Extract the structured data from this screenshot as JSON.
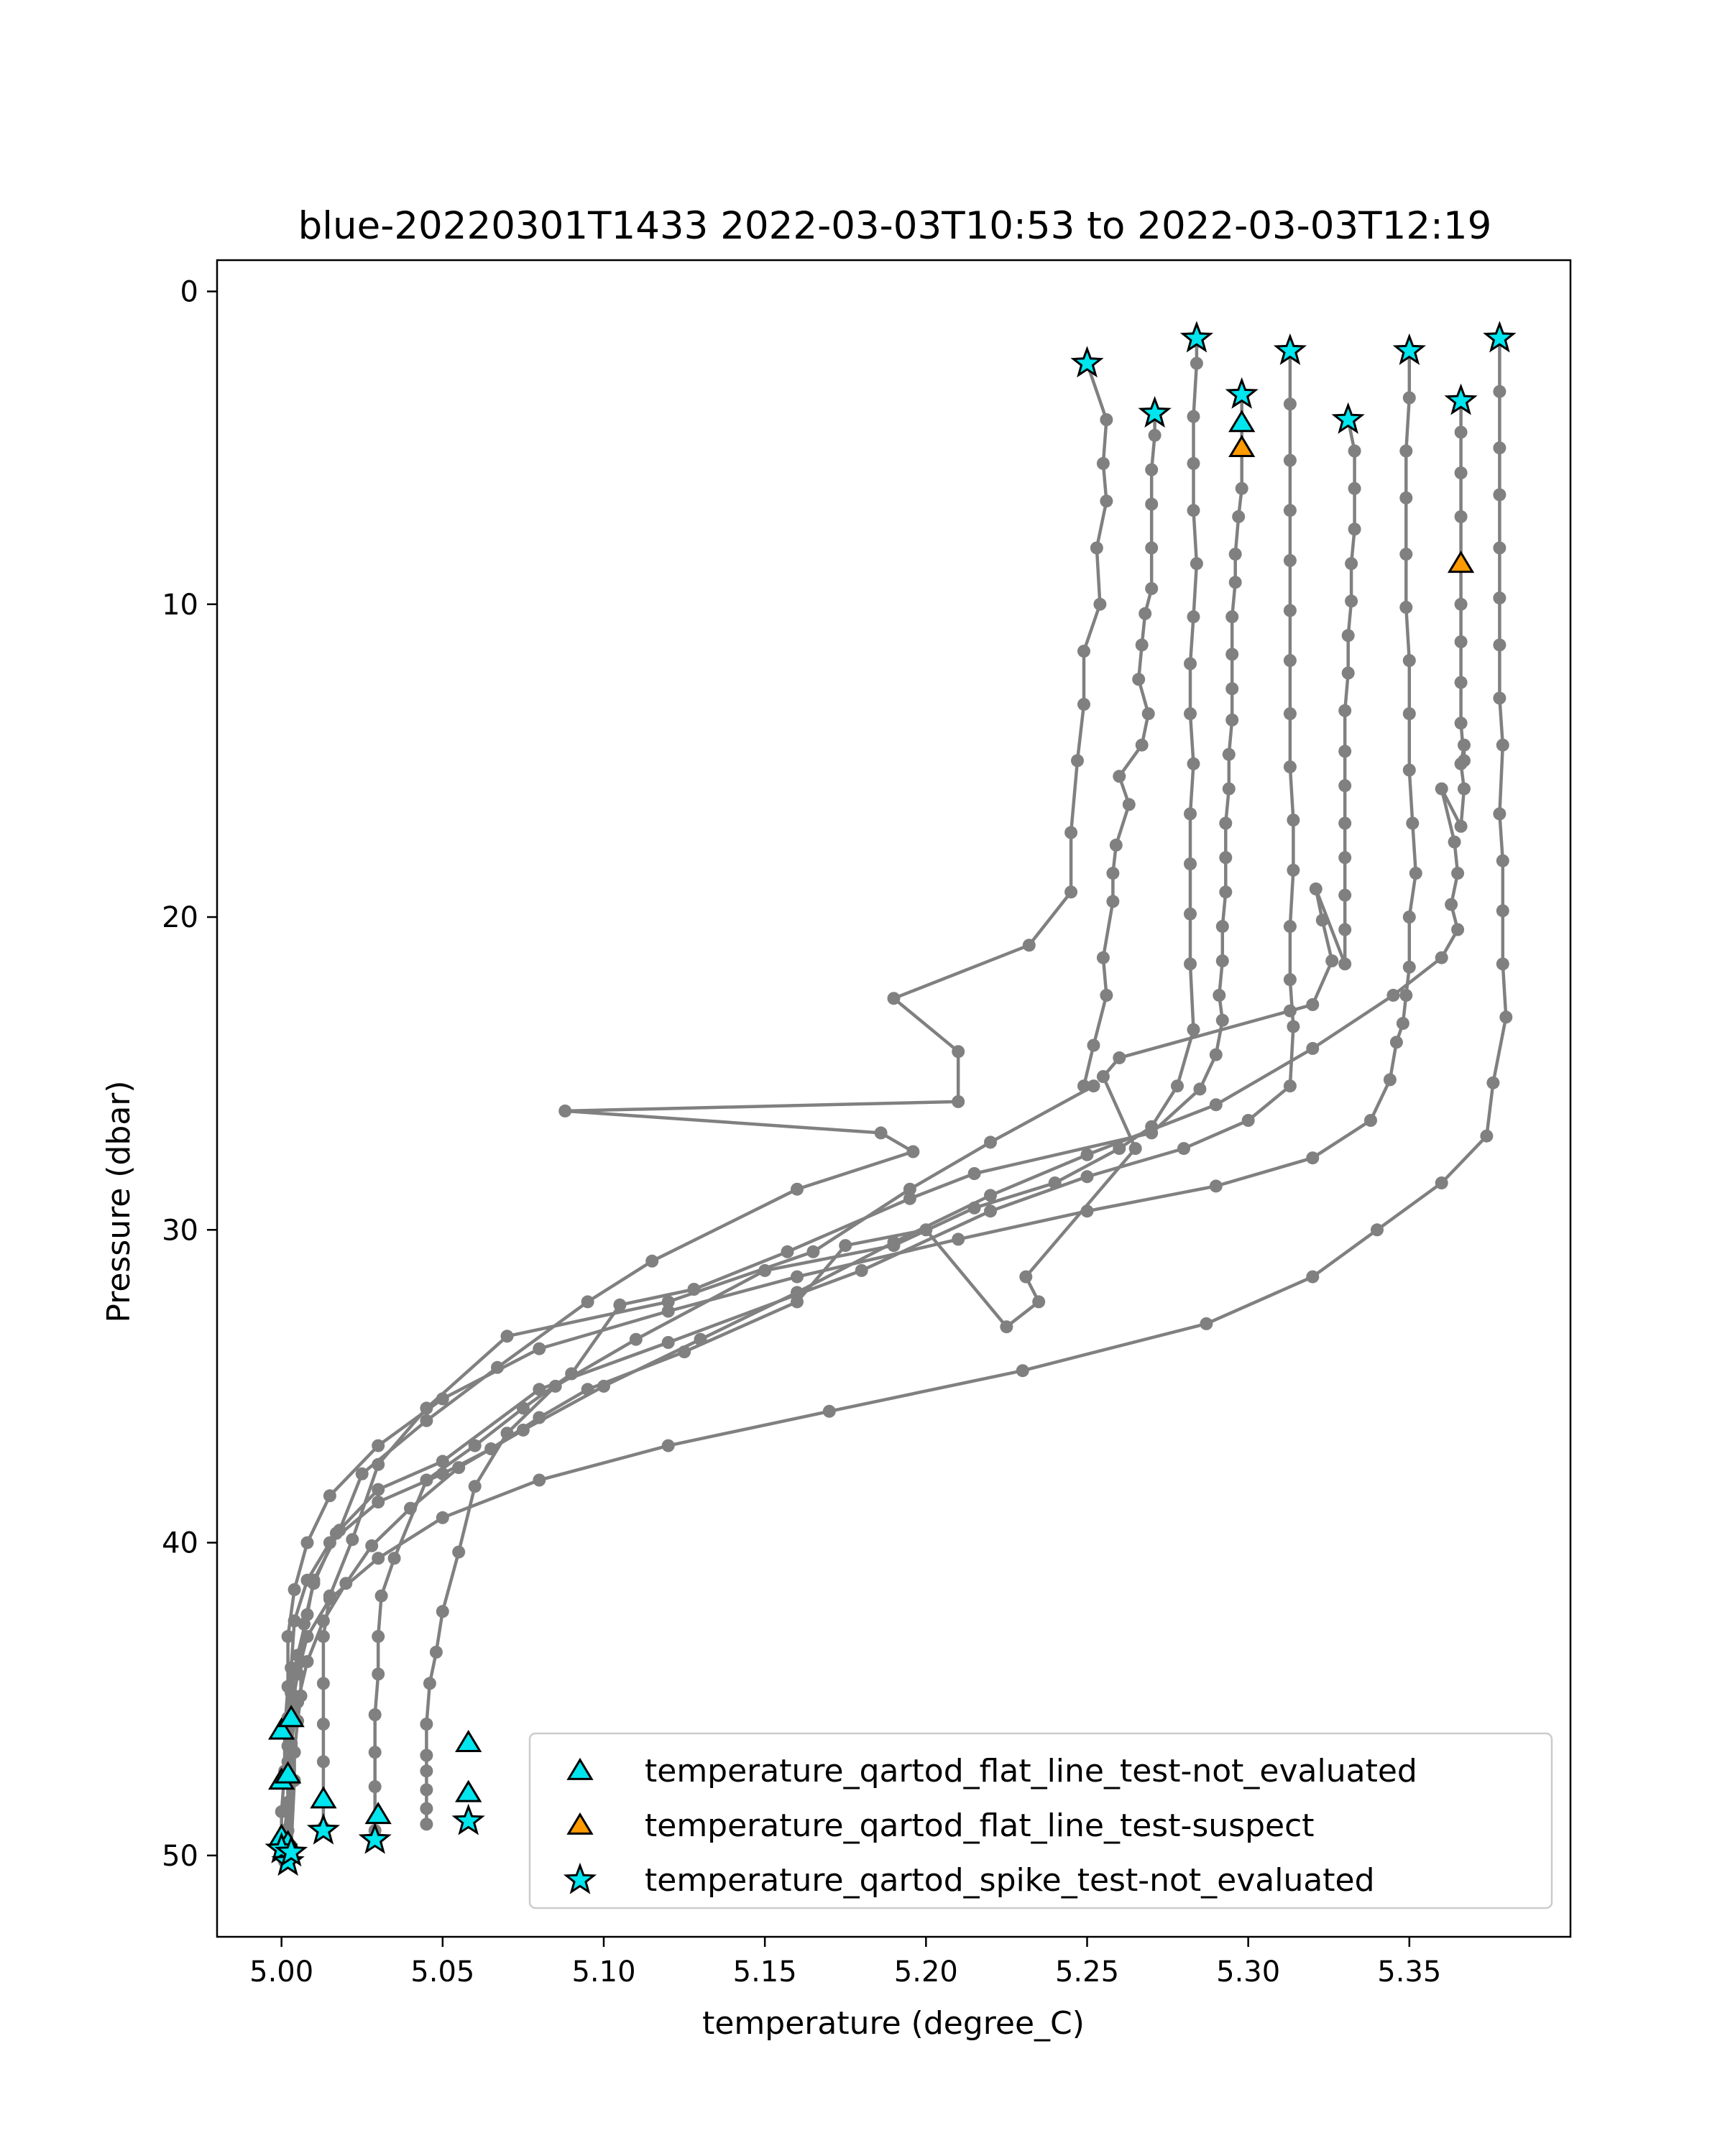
{
  "chart_data": {
    "type": "scatter",
    "title": "blue-20220301T1433 2022-03-03T10:53 to 2022-03-03T12:19",
    "xlabel": "temperature (degree_C)",
    "ylabel": "Pressure (dbar)",
    "xlim": [
      4.98,
      5.4
    ],
    "ylim": [
      52.6,
      -1
    ],
    "y_inverted": true,
    "xticks": [
      5.0,
      5.05,
      5.1,
      5.15,
      5.2,
      5.25,
      5.3,
      5.35
    ],
    "xtick_labels": [
      "5.00",
      "5.05",
      "5.10",
      "5.15",
      "5.20",
      "5.25",
      "5.30",
      "5.35"
    ],
    "yticks": [
      0,
      10,
      20,
      30,
      40,
      50
    ],
    "ytick_labels": [
      "0",
      "10",
      "20",
      "30",
      "40",
      "50"
    ],
    "grid": false,
    "legend_position": "lower-right",
    "colors": {
      "profile": "#808080",
      "not_evaluated": "#00e5ee",
      "suspect": "#ff9a00",
      "marker_edge": "#000000"
    },
    "profiles": [
      {
        "x": [
          5.25,
          5.256,
          5.255,
          5.256,
          5.253,
          5.254,
          5.249,
          5.249,
          5.247,
          5.245,
          5.245,
          5.232,
          5.19,
          5.21,
          5.21,
          5.088,
          5.186,
          5.196,
          5.16,
          5.115,
          5.095,
          5.067,
          5.045,
          5.025,
          5.018,
          5.01,
          5.008,
          5.005,
          5.003,
          5.003,
          5.002,
          5.002,
          5.002,
          5.001,
          5.001,
          5.0
        ],
        "y": [
          2.3,
          4.1,
          5.5,
          6.7,
          8.2,
          10.0,
          11.5,
          13.2,
          15.0,
          17.3,
          19.2,
          20.9,
          22.6,
          24.3,
          25.9,
          26.2,
          26.9,
          27.5,
          28.7,
          31.0,
          32.3,
          34.4,
          36.1,
          37.8,
          39.6,
          41.2,
          42.3,
          43.6,
          44.8,
          45.7,
          46.5,
          47.4,
          48.3,
          49.2,
          49.7,
          49.8
        ]
      },
      {
        "x": [
          5.271,
          5.271,
          5.27,
          5.27,
          5.27,
          5.27,
          5.268,
          5.267,
          5.266,
          5.269,
          5.267,
          5.26,
          5.263,
          5.259,
          5.258,
          5.258,
          5.255,
          5.256,
          5.252,
          5.249,
          5.252,
          5.22,
          5.195,
          5.165,
          5.12,
          5.07,
          5.045,
          5.03,
          5.022,
          5.015,
          5.013,
          5.013,
          5.013,
          5.013,
          5.013,
          5.013
        ],
        "y": [
          3.9,
          4.6,
          5.7,
          6.8,
          8.2,
          9.5,
          10.3,
          11.3,
          12.4,
          13.5,
          14.5,
          15.5,
          16.4,
          17.7,
          18.6,
          19.5,
          21.3,
          22.5,
          24.1,
          25.4,
          25.4,
          27.2,
          28.7,
          30.7,
          32.3,
          33.4,
          35.7,
          37.5,
          39.9,
          41.7,
          43.0,
          44.5,
          45.8,
          47.0,
          48.2,
          49.1
        ]
      },
      {
        "x": [
          5.284,
          5.284,
          5.283,
          5.283,
          5.283,
          5.284,
          5.283,
          5.282,
          5.282,
          5.283,
          5.282,
          5.282,
          5.282,
          5.282,
          5.283,
          5.278,
          5.27,
          5.26,
          5.24,
          5.215,
          5.19,
          5.15,
          5.11,
          5.085,
          5.07,
          5.06,
          5.055,
          5.05,
          5.048,
          5.046,
          5.045,
          5.045,
          5.045,
          5.045,
          5.045,
          5.045
        ],
        "y": [
          1.6,
          2.3,
          4.0,
          5.5,
          7.0,
          8.7,
          10.4,
          11.9,
          13.5,
          15.1,
          16.7,
          18.3,
          19.9,
          21.5,
          23.6,
          25.4,
          26.7,
          27.4,
          28.5,
          29.3,
          30.5,
          31.3,
          33.5,
          35.0,
          36.5,
          38.2,
          40.3,
          42.2,
          43.5,
          44.5,
          45.8,
          46.8,
          47.3,
          47.9,
          48.5,
          49.0
        ]
      },
      {
        "x": [
          5.298,
          5.298,
          5.298,
          5.298,
          5.297,
          5.296,
          5.296,
          5.295,
          5.295,
          5.295,
          5.295,
          5.294,
          5.294,
          5.293,
          5.293,
          5.293,
          5.292,
          5.292,
          5.291,
          5.292,
          5.29,
          5.285,
          5.27,
          5.215,
          5.195,
          5.157,
          5.128,
          5.105,
          5.09,
          5.075,
          5.06,
          5.045,
          5.035,
          5.031,
          5.03,
          5.03,
          5.029,
          5.029,
          5.029,
          5.029
        ],
        "y": [
          3.3,
          4.2,
          5.0,
          6.3,
          7.2,
          8.4,
          9.3,
          10.4,
          11.6,
          12.7,
          13.7,
          14.8,
          15.9,
          17.0,
          18.1,
          19.2,
          20.3,
          21.4,
          22.5,
          23.3,
          24.4,
          25.5,
          26.9,
          28.2,
          29.0,
          30.7,
          31.9,
          32.4,
          34.6,
          35.7,
          36.9,
          38.0,
          40.5,
          41.7,
          43.0,
          44.2,
          45.5,
          46.7,
          47.8,
          49.2
        ]
      },
      {
        "x": [
          5.313,
          5.313,
          5.313,
          5.313,
          5.313,
          5.313,
          5.313,
          5.313,
          5.313,
          5.314,
          5.314,
          5.313,
          5.313,
          5.314,
          5.313,
          5.3,
          5.28,
          5.25,
          5.22,
          5.18,
          5.12,
          5.08,
          5.05,
          5.03,
          5.017,
          5.01,
          5.007,
          5.006,
          5.006,
          5.005,
          5.004,
          5.004,
          5.003
        ],
        "y": [
          1.9,
          3.6,
          5.4,
          7.0,
          8.6,
          10.2,
          11.8,
          13.5,
          15.2,
          16.9,
          18.5,
          20.3,
          22.0,
          23.5,
          25.4,
          26.5,
          27.4,
          28.3,
          29.4,
          31.3,
          33.6,
          35.1,
          37.4,
          38.3,
          39.7,
          41.3,
          42.6,
          43.8,
          44.9,
          45.7,
          46.7,
          47.6,
          49.7
        ]
      },
      {
        "x": [
          5.331,
          5.333,
          5.333,
          5.333,
          5.332,
          5.332,
          5.331,
          5.331,
          5.33,
          5.33,
          5.33,
          5.33,
          5.33,
          5.33,
          5.33,
          5.33,
          5.321,
          5.323,
          5.326,
          5.32,
          5.313,
          5.26,
          5.255,
          5.265,
          5.231,
          5.235,
          5.225,
          5.2,
          5.175,
          5.16,
          5.125,
          5.095,
          5.08,
          5.065,
          5.05,
          5.03,
          5.015,
          5.008,
          5.004,
          5.003,
          5.002,
          5.002,
          5.002,
          5.002
        ],
        "y": [
          4.1,
          5.1,
          6.3,
          7.6,
          8.7,
          9.9,
          11.0,
          12.2,
          13.4,
          14.7,
          15.8,
          17.0,
          18.1,
          19.3,
          20.4,
          21.5,
          19.1,
          20.1,
          21.4,
          22.8,
          23.0,
          24.5,
          25.1,
          27.4,
          31.5,
          32.3,
          33.1,
          30.0,
          30.5,
          32.3,
          33.9,
          35.1,
          36.0,
          37.0,
          37.8,
          38.7,
          40.0,
          41.2,
          42.5,
          44.0,
          45.6,
          47.0,
          48.5,
          50.0
        ]
      },
      {
        "x": [
          5.35,
          5.35,
          5.349,
          5.349,
          5.349,
          5.349,
          5.35,
          5.35,
          5.35,
          5.351,
          5.352,
          5.35,
          5.35,
          5.349,
          5.348,
          5.346,
          5.344,
          5.338,
          5.32,
          5.29,
          5.25,
          5.21,
          5.16,
          5.12,
          5.08,
          5.05,
          5.03,
          5.015,
          5.008,
          5.004,
          5.002,
          5.002,
          5.001,
          5.001,
          5.0,
          5.0
        ],
        "y": [
          1.9,
          3.4,
          5.1,
          6.6,
          8.4,
          10.1,
          11.8,
          13.5,
          15.3,
          17.0,
          18.6,
          20.0,
          21.6,
          22.5,
          23.4,
          24.0,
          25.2,
          26.5,
          27.7,
          28.6,
          29.4,
          30.3,
          31.5,
          32.6,
          33.8,
          35.4,
          36.9,
          38.5,
          40.0,
          41.5,
          43.0,
          44.6,
          46.0,
          47.3,
          48.6,
          49.6
        ]
      },
      {
        "x": [
          5.366,
          5.366,
          5.366,
          5.366,
          5.366,
          5.366,
          5.366,
          5.366,
          5.366,
          5.367,
          5.367,
          5.366,
          5.367,
          5.366,
          5.36,
          5.364,
          5.365,
          5.363,
          5.365,
          5.36,
          5.345,
          5.32,
          5.29,
          5.25,
          5.22,
          5.19,
          5.16,
          5.13,
          5.1,
          5.075,
          5.055,
          5.04,
          5.028,
          5.02,
          5.013,
          5.008,
          5.005,
          5.003,
          5.003,
          5.002
        ],
        "y": [
          3.5,
          4.5,
          5.8,
          7.2,
          8.7,
          10.0,
          11.2,
          12.5,
          13.8,
          15.0,
          14.5,
          15.1,
          15.9,
          17.1,
          15.9,
          17.6,
          18.6,
          19.6,
          20.4,
          21.3,
          22.5,
          24.2,
          26.0,
          27.6,
          28.9,
          30.4,
          32.0,
          33.5,
          35.0,
          36.4,
          37.6,
          38.9,
          40.1,
          41.3,
          42.5,
          43.8,
          45.1,
          46.4,
          47.6,
          50.2
        ]
      },
      {
        "x": [
          5.378,
          5.378,
          5.378,
          5.378,
          5.378,
          5.378,
          5.378,
          5.378,
          5.379,
          5.378,
          5.379,
          5.379,
          5.379,
          5.38,
          5.376,
          5.374,
          5.36,
          5.34,
          5.32,
          5.287,
          5.23,
          5.17,
          5.12,
          5.08,
          5.05,
          5.03,
          5.015,
          5.008,
          5.005,
          5.003,
          5.003,
          5.002,
          5.002,
          5.002,
          5.001,
          5.001
        ],
        "y": [
          1.5,
          3.2,
          5.0,
          6.5,
          8.2,
          9.8,
          11.3,
          13.0,
          14.5,
          16.7,
          18.2,
          19.8,
          21.5,
          23.2,
          25.3,
          27.0,
          28.5,
          30.0,
          31.5,
          33.0,
          34.5,
          35.8,
          36.9,
          38.0,
          39.2,
          40.5,
          41.8,
          43.0,
          44.2,
          45.4,
          46.5,
          47.6,
          48.5,
          49.2,
          49.7,
          50.2
        ]
      }
    ],
    "flags": {
      "flat_line_not_evaluated": {
        "label": "temperature_qartod_flat_line_test-not_evaluated",
        "x": [
          5.298,
          5.0,
          5.003,
          5.0,
          5.002,
          5.0,
          5.002,
          5.013,
          5.03,
          5.058,
          5.058
        ],
        "y": [
          4.2,
          46.0,
          45.6,
          47.6,
          47.4,
          49.4,
          49.6,
          48.2,
          48.7,
          46.4,
          48.0
        ]
      },
      "flat_line_suspect": {
        "label": "temperature_qartod_flat_line_test-suspect",
        "x": [
          5.298,
          5.366
        ],
        "y": [
          5.0,
          8.7
        ]
      },
      "spike_not_evaluated": {
        "label": "temperature_qartod_spike_test-not_evaluated",
        "x": [
          5.25,
          5.271,
          5.284,
          5.298,
          5.313,
          5.331,
          5.35,
          5.366,
          5.378,
          5.0,
          5.002,
          5.003,
          5.013,
          5.029,
          5.058
        ],
        "y": [
          2.3,
          3.9,
          1.5,
          3.3,
          1.9,
          4.1,
          1.9,
          3.5,
          1.5,
          49.8,
          50.2,
          49.9,
          49.2,
          49.5,
          48.9
        ]
      }
    },
    "legend": [
      {
        "key": "flat_line_not_evaluated",
        "label": "temperature_qartod_flat_line_test-not_evaluated"
      },
      {
        "key": "flat_line_suspect",
        "label": "temperature_qartod_flat_line_test-suspect"
      },
      {
        "key": "spike_not_evaluated",
        "label": "temperature_qartod_spike_test-not_evaluated"
      }
    ]
  }
}
